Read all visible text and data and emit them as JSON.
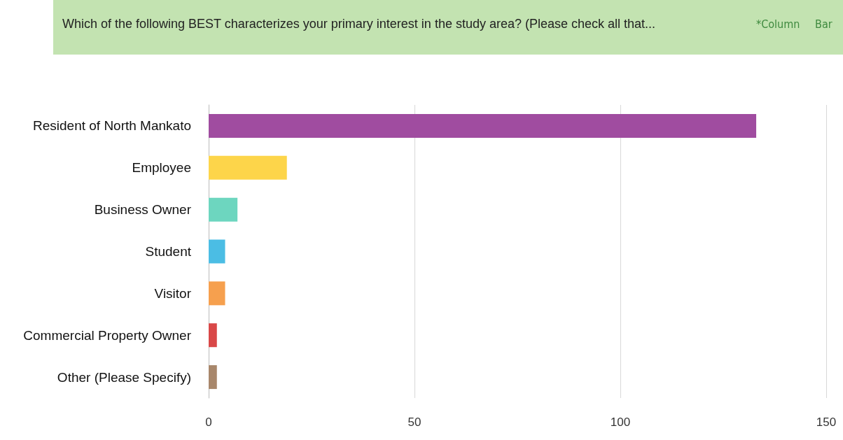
{
  "chart_data": {
    "type": "bar",
    "orientation": "horizontal",
    "title": "Which of the following BEST characterizes your primary interest in the study area? (Please check all that...",
    "annotations": [
      "*Column",
      "Bar"
    ],
    "categories": [
      "Resident of North Mankato",
      "Employee",
      "Business Owner",
      "Student",
      "Visitor",
      "Commercial Property Owner",
      "Other (Please Specify)"
    ],
    "values": [
      133,
      19,
      7,
      4,
      4,
      2,
      2
    ],
    "colors": [
      "#a04ca0",
      "#fdd54a",
      "#6dd6bf",
      "#4bbde4",
      "#f6a04e",
      "#d94848",
      "#a8876b"
    ],
    "xlim": [
      0,
      150
    ],
    "xticks": [
      0,
      50,
      100,
      150
    ],
    "grid": "x"
  }
}
